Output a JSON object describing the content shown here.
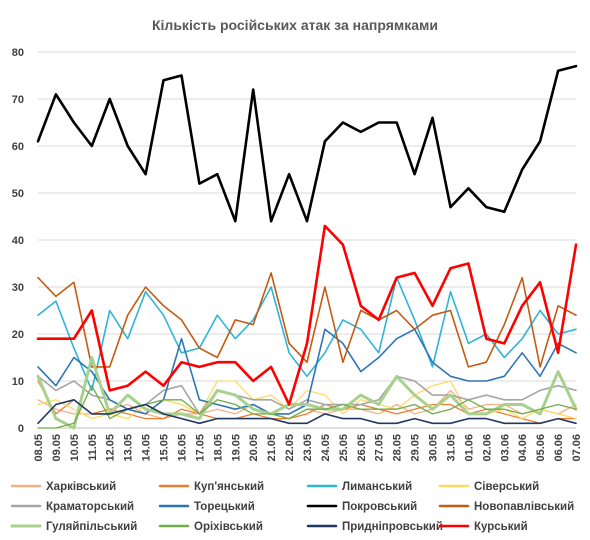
{
  "chart_data": {
    "type": "line",
    "title": "Кількість російських атак за напрямками",
    "xlabel": "",
    "ylabel": "",
    "ylim": [
      0,
      80
    ],
    "yticks": [
      0,
      10,
      20,
      30,
      40,
      50,
      60,
      70,
      80
    ],
    "grid": "horizontal",
    "legend_position": "bottom",
    "categories": [
      "08.05",
      "09.05",
      "10.05",
      "11.05",
      "12.05",
      "13.05",
      "14.05",
      "15.05",
      "16.05",
      "17.05",
      "18.05",
      "19.05",
      "20.05",
      "21.05",
      "22.05",
      "23.05",
      "24.05",
      "25.05",
      "26.05",
      "27.05",
      "28.05",
      "29.05",
      "30.05",
      "31.05",
      "01.06",
      "02.06",
      "03.06",
      "04.06",
      "05.06",
      "06.06",
      "07.06"
    ],
    "x_tick_labels": [
      "08.05",
      "09.05",
      "10.05",
      "11.05",
      "12.05",
      "13.05",
      "14.05",
      "15.05",
      "16.05",
      "17.05",
      "18.05",
      "19.05",
      "20.05",
      "21.05",
      "22.05",
      "23.05",
      "24.05",
      "25.05",
      "26.05",
      "27.05",
      "28.05",
      "29.05",
      "30.05",
      "31.05",
      "01.06",
      "02.06",
      "03.06",
      "04.06",
      "05.06",
      "06.06",
      "07.06"
    ],
    "series": [
      {
        "name": "Харківський",
        "color": "#f4b183",
        "width": 1.3,
        "values": [
          6,
          4,
          3,
          3,
          4,
          5,
          3,
          2,
          3,
          3,
          4,
          3,
          5,
          3,
          2,
          4,
          3,
          4,
          4,
          3,
          5,
          3,
          4,
          8,
          4,
          5,
          5,
          3,
          4,
          3,
          5
        ]
      },
      {
        "name": "Куп'янський",
        "color": "#ed7d31",
        "width": 1.3,
        "values": [
          10,
          3,
          6,
          3,
          4,
          3,
          2,
          2,
          4,
          3,
          2,
          2,
          3,
          2,
          2,
          3,
          5,
          4,
          5,
          4,
          3,
          4,
          5,
          5,
          3,
          4,
          3,
          2,
          1,
          2,
          2
        ]
      },
      {
        "name": "Лиманський",
        "color": "#2eb4d6",
        "width": 1.6,
        "values": [
          24,
          27,
          17,
          8,
          25,
          19,
          29,
          24,
          16,
          17,
          24,
          19,
          23,
          30,
          16,
          11,
          16,
          23,
          21,
          16,
          32,
          23,
          13,
          29,
          18,
          20,
          15,
          19,
          25,
          20,
          21
        ]
      },
      {
        "name": "Сіверський",
        "color": "#ffd966",
        "width": 1.3,
        "values": [
          5,
          6,
          4,
          2,
          3,
          2,
          5,
          6,
          5,
          3,
          10,
          10,
          6,
          7,
          4,
          8,
          7,
          3,
          6,
          5,
          4,
          7,
          9,
          10,
          3,
          3,
          4,
          2,
          4,
          3,
          2
        ]
      },
      {
        "name": "Краматорський",
        "color": "#a5a5a5",
        "width": 1.6,
        "values": [
          11,
          8,
          10,
          7,
          6,
          4,
          5,
          8,
          9,
          3,
          8,
          7,
          6,
          6,
          4,
          6,
          5,
          5,
          5,
          6,
          11,
          10,
          7,
          7,
          6,
          7,
          6,
          6,
          8,
          9,
          8
        ]
      },
      {
        "name": "Торецький",
        "color": "#2e75b6",
        "width": 1.6,
        "values": [
          13,
          9,
          15,
          12,
          6,
          4,
          3,
          6,
          19,
          6,
          5,
          4,
          5,
          3,
          3,
          5,
          21,
          18,
          12,
          15,
          19,
          21,
          14,
          11,
          10,
          10,
          11,
          16,
          11,
          18,
          16
        ]
      },
      {
        "name": "Покровський",
        "color": "#000000",
        "width": 2.6,
        "values": [
          61,
          71,
          65,
          60,
          70,
          60,
          54,
          74,
          75,
          52,
          54,
          44,
          72,
          44,
          54,
          44,
          61,
          65,
          63,
          65,
          65,
          54,
          66,
          47,
          51,
          47,
          46,
          55,
          61,
          76,
          77
        ]
      },
      {
        "name": "Новопавлівський",
        "color": "#c55a11",
        "width": 1.6,
        "values": [
          32,
          28,
          31,
          13,
          13,
          24,
          30,
          26,
          23,
          17,
          15,
          23,
          22,
          33,
          18,
          14,
          30,
          14,
          25,
          23,
          25,
          21,
          24,
          25,
          13,
          14,
          22,
          32,
          13,
          26,
          24
        ]
      },
      {
        "name": "Гуляйпільський",
        "color": "#a9d18e",
        "width": 3.0,
        "values": [
          11,
          2,
          0,
          15,
          3,
          7,
          4,
          3,
          3,
          2,
          8,
          7,
          4,
          3,
          5,
          5,
          4,
          4,
          7,
          5,
          11,
          7,
          4,
          7,
          3,
          3,
          5,
          5,
          3,
          12,
          4
        ]
      },
      {
        "name": "Оріхівський",
        "color": "#70ad47",
        "width": 1.3,
        "values": [
          0,
          0,
          1,
          9,
          2,
          4,
          5,
          6,
          6,
          3,
          6,
          5,
          3,
          3,
          2,
          4,
          4,
          5,
          4,
          4,
          4,
          5,
          3,
          4,
          6,
          4,
          4,
          3,
          4,
          5,
          4
        ]
      },
      {
        "name": "Придніпровський",
        "color": "#1f3864",
        "width": 1.6,
        "values": [
          1,
          5,
          6,
          3,
          3,
          4,
          5,
          3,
          2,
          1,
          2,
          2,
          2,
          2,
          1,
          1,
          3,
          2,
          2,
          1,
          1,
          2,
          1,
          1,
          2,
          2,
          1,
          1,
          1,
          2,
          1
        ]
      },
      {
        "name": "Курський",
        "color": "#ff0000",
        "width": 2.6,
        "values": [
          19,
          19,
          19,
          25,
          8,
          9,
          12,
          9,
          14,
          13,
          14,
          14,
          10,
          13,
          5,
          18,
          43,
          39,
          26,
          23,
          32,
          33,
          26,
          34,
          35,
          19,
          18,
          26,
          31,
          16,
          39
        ]
      }
    ]
  }
}
